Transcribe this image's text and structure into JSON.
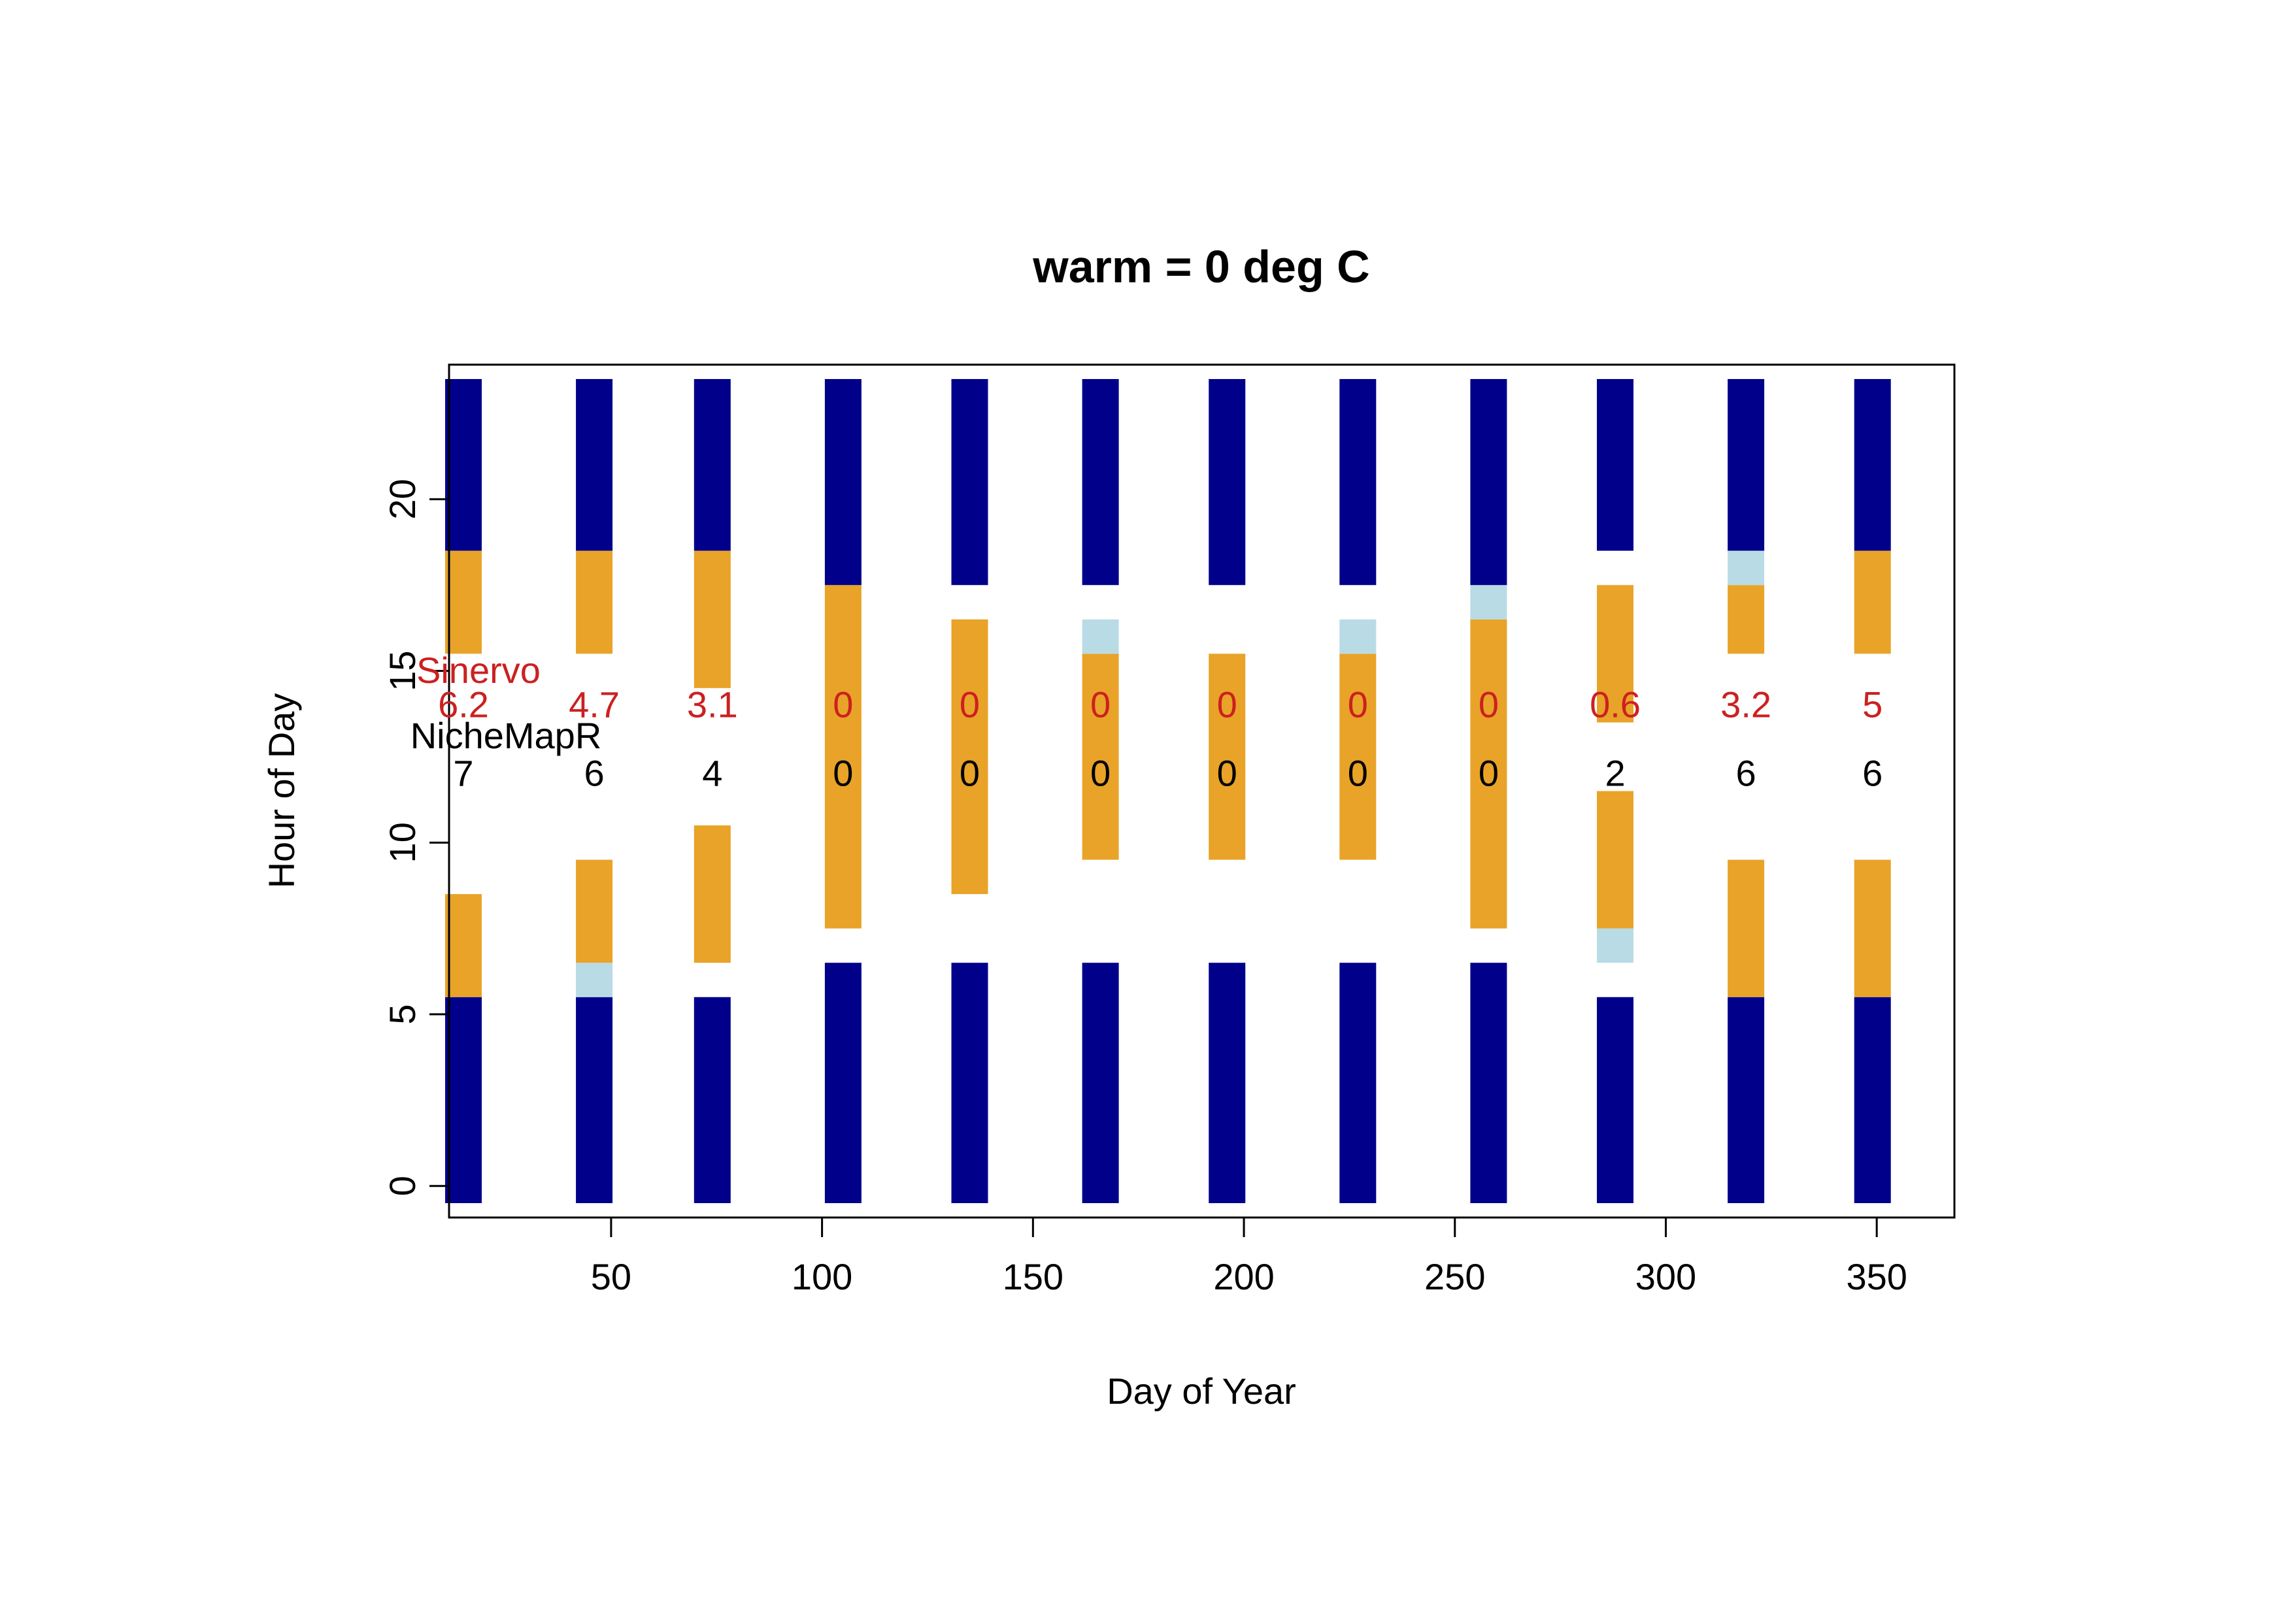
{
  "chart_data": {
    "type": "bar",
    "subtype": "stacked-vertical-segments",
    "title": "warm = 0 deg C",
    "xlabel": "Day of Year",
    "ylabel": "Hour of Day",
    "xlim": [
      15,
      365
    ],
    "ylim": [
      -0.5,
      23.5
    ],
    "xticks": [
      50,
      100,
      150,
      200,
      250,
      300,
      350
    ],
    "yticks": [
      0,
      5,
      10,
      15,
      20
    ],
    "colors": {
      "dark": "#00008b",
      "active": "#e8a328",
      "light": "#b9dbe6",
      "sinervo_text": "#cc2020",
      "nichemapr_text": "#000000",
      "axis": "#000000"
    },
    "series_labels": {
      "sinervo": "Sinervo",
      "nichemapr": "NicheMapR"
    },
    "days": [
      15,
      46,
      74,
      105,
      135,
      166,
      196,
      227,
      258,
      288,
      319,
      349
    ],
    "sinervo_values": [
      "6.2",
      "4.7",
      "3.1",
      "0",
      "0",
      "0",
      "0",
      "0",
      "0",
      "0.6",
      "3.2",
      "5"
    ],
    "nichemapr_values": [
      "7",
      "6",
      "4",
      "0",
      "0",
      "0",
      "0",
      "0",
      "0",
      "2",
      "6",
      "6"
    ],
    "columns": [
      {
        "day": 15,
        "segments": [
          {
            "y0": -0.5,
            "y1": 5.5,
            "kind": "dark"
          },
          {
            "y0": 5.5,
            "y1": 8.5,
            "kind": "active"
          },
          {
            "y0": 15.5,
            "y1": 18.5,
            "kind": "active"
          },
          {
            "y0": 18.5,
            "y1": 23.5,
            "kind": "dark"
          }
        ]
      },
      {
        "day": 46,
        "segments": [
          {
            "y0": -0.5,
            "y1": 5.5,
            "kind": "dark"
          },
          {
            "y0": 5.5,
            "y1": 6.5,
            "kind": "light"
          },
          {
            "y0": 6.5,
            "y1": 9.5,
            "kind": "active"
          },
          {
            "y0": 15.5,
            "y1": 18.5,
            "kind": "active"
          },
          {
            "y0": 18.5,
            "y1": 23.5,
            "kind": "dark"
          }
        ]
      },
      {
        "day": 74,
        "segments": [
          {
            "y0": -0.5,
            "y1": 5.5,
            "kind": "dark"
          },
          {
            "y0": 6.5,
            "y1": 10.5,
            "kind": "active"
          },
          {
            "y0": 14.5,
            "y1": 18.5,
            "kind": "active"
          },
          {
            "y0": 18.5,
            "y1": 23.5,
            "kind": "dark"
          }
        ]
      },
      {
        "day": 105,
        "segments": [
          {
            "y0": -0.5,
            "y1": 6.5,
            "kind": "dark"
          },
          {
            "y0": 7.5,
            "y1": 17.5,
            "kind": "active"
          },
          {
            "y0": 17.5,
            "y1": 23.5,
            "kind": "dark"
          }
        ]
      },
      {
        "day": 135,
        "segments": [
          {
            "y0": -0.5,
            "y1": 6.5,
            "kind": "dark"
          },
          {
            "y0": 8.5,
            "y1": 16.5,
            "kind": "active"
          },
          {
            "y0": 17.5,
            "y1": 23.5,
            "kind": "dark"
          }
        ]
      },
      {
        "day": 166,
        "segments": [
          {
            "y0": -0.5,
            "y1": 6.5,
            "kind": "dark"
          },
          {
            "y0": 9.5,
            "y1": 15.5,
            "kind": "active"
          },
          {
            "y0": 15.5,
            "y1": 16.5,
            "kind": "light"
          },
          {
            "y0": 17.5,
            "y1": 23.5,
            "kind": "dark"
          }
        ]
      },
      {
        "day": 196,
        "segments": [
          {
            "y0": -0.5,
            "y1": 6.5,
            "kind": "dark"
          },
          {
            "y0": 9.5,
            "y1": 15.5,
            "kind": "active"
          },
          {
            "y0": 17.5,
            "y1": 23.5,
            "kind": "dark"
          }
        ]
      },
      {
        "day": 227,
        "segments": [
          {
            "y0": -0.5,
            "y1": 6.5,
            "kind": "dark"
          },
          {
            "y0": 9.5,
            "y1": 15.5,
            "kind": "active"
          },
          {
            "y0": 15.5,
            "y1": 16.5,
            "kind": "light"
          },
          {
            "y0": 17.5,
            "y1": 23.5,
            "kind": "dark"
          }
        ]
      },
      {
        "day": 258,
        "segments": [
          {
            "y0": -0.5,
            "y1": 6.5,
            "kind": "dark"
          },
          {
            "y0": 7.5,
            "y1": 16.5,
            "kind": "active"
          },
          {
            "y0": 16.5,
            "y1": 17.5,
            "kind": "light"
          },
          {
            "y0": 17.5,
            "y1": 23.5,
            "kind": "dark"
          }
        ]
      },
      {
        "day": 288,
        "segments": [
          {
            "y0": -0.5,
            "y1": 5.5,
            "kind": "dark"
          },
          {
            "y0": 6.5,
            "y1": 7.5,
            "kind": "light"
          },
          {
            "y0": 7.5,
            "y1": 11.5,
            "kind": "active"
          },
          {
            "y0": 13.5,
            "y1": 17.5,
            "kind": "active"
          },
          {
            "y0": 18.5,
            "y1": 23.5,
            "kind": "dark"
          }
        ]
      },
      {
        "day": 319,
        "segments": [
          {
            "y0": -0.5,
            "y1": 5.5,
            "kind": "dark"
          },
          {
            "y0": 5.5,
            "y1": 9.5,
            "kind": "active"
          },
          {
            "y0": 15.5,
            "y1": 17.5,
            "kind": "active"
          },
          {
            "y0": 17.5,
            "y1": 18.5,
            "kind": "light"
          },
          {
            "y0": 18.5,
            "y1": 23.5,
            "kind": "dark"
          }
        ]
      },
      {
        "day": 349,
        "segments": [
          {
            "y0": -0.5,
            "y1": 5.5,
            "kind": "dark"
          },
          {
            "y0": 5.5,
            "y1": 9.5,
            "kind": "active"
          },
          {
            "y0": 15.5,
            "y1": 18.5,
            "kind": "active"
          },
          {
            "y0": 18.5,
            "y1": 23.5,
            "kind": "dark"
          }
        ]
      }
    ]
  }
}
